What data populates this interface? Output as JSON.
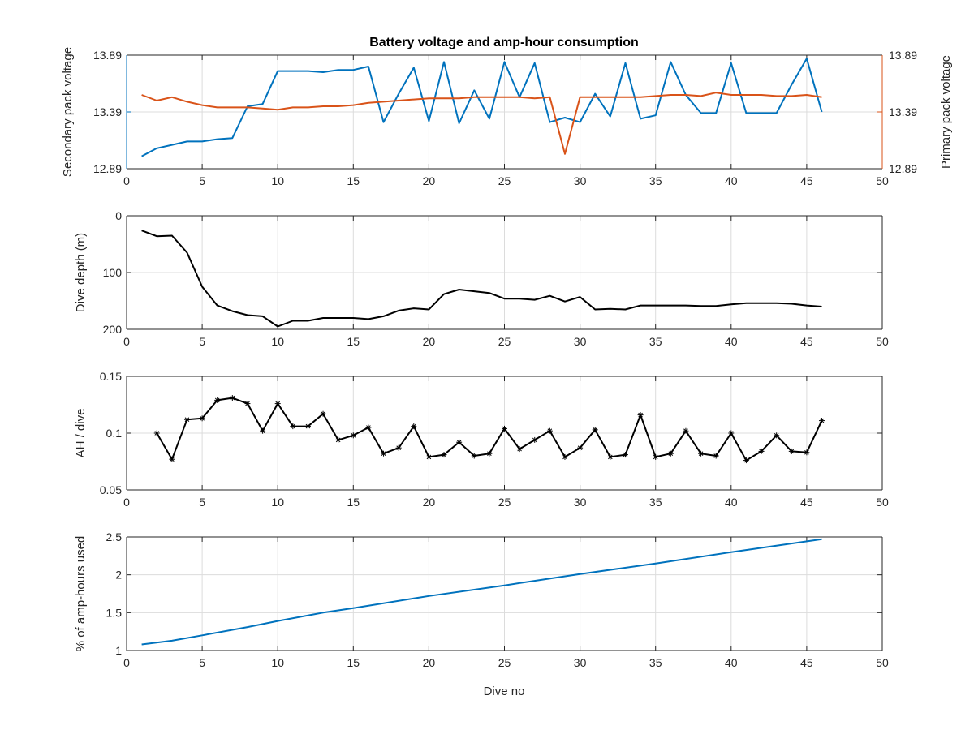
{
  "figure": {
    "title": "Battery voltage and amp-hour consumption",
    "xlabel": "Dive no"
  },
  "chart_data": [
    {
      "type": "line",
      "title": "Battery voltage and amp-hour consumption",
      "xlabel": "",
      "ylabel": "Secondary pack voltage",
      "ylabel_right": "Primary pack voltage",
      "xlim": [
        0,
        50
      ],
      "ylim": [
        12.89,
        13.89
      ],
      "ylim_right": [
        12.89,
        13.89
      ],
      "xticks": [
        0,
        5,
        10,
        15,
        20,
        25,
        30,
        35,
        40,
        45,
        50
      ],
      "yticks": [
        12.89,
        13.39,
        13.89
      ],
      "yticks_right": [
        12.89,
        13.39,
        13.89
      ],
      "grid": true,
      "x": [
        1,
        2,
        3,
        4,
        5,
        6,
        7,
        8,
        9,
        10,
        11,
        12,
        13,
        14,
        15,
        16,
        17,
        18,
        19,
        20,
        21,
        22,
        23,
        24,
        25,
        26,
        27,
        28,
        29,
        30,
        31,
        32,
        33,
        34,
        35,
        36,
        37,
        38,
        39,
        40,
        41,
        42,
        43,
        44,
        45,
        46
      ],
      "series": [
        {
          "axis": "left",
          "color": "#0072BD",
          "values": [
            13.0,
            13.07,
            13.1,
            13.13,
            13.13,
            13.15,
            13.16,
            13.44,
            13.46,
            13.75,
            13.75,
            13.75,
            13.74,
            13.76,
            13.76,
            13.79,
            13.3,
            13.55,
            13.78,
            13.31,
            13.83,
            13.29,
            13.58,
            13.33,
            13.83,
            13.52,
            13.82,
            13.3,
            13.34,
            13.3,
            13.55,
            13.35,
            13.82,
            13.33,
            13.36,
            13.83,
            13.54,
            13.38,
            13.38,
            13.82,
            13.38,
            13.38,
            13.38,
            13.63,
            13.86,
            13.39
          ]
        },
        {
          "axis": "right",
          "color": "#D95319",
          "values": [
            13.54,
            13.49,
            13.52,
            13.48,
            13.45,
            13.43,
            13.43,
            13.43,
            13.42,
            13.41,
            13.43,
            13.43,
            13.44,
            13.44,
            13.45,
            13.47,
            13.48,
            13.49,
            13.5,
            13.51,
            13.51,
            13.51,
            13.52,
            13.52,
            13.52,
            13.52,
            13.51,
            13.52,
            13.02,
            13.52,
            13.52,
            13.52,
            13.52,
            13.52,
            13.53,
            13.54,
            13.54,
            13.53,
            13.56,
            13.54,
            13.54,
            13.54,
            13.53,
            13.53,
            13.54,
            13.52
          ]
        }
      ]
    },
    {
      "type": "line",
      "xlabel": "",
      "ylabel": "Dive depth (m)",
      "xlim": [
        0,
        50
      ],
      "ylim": [
        0,
        200
      ],
      "y_reversed": true,
      "xticks": [
        0,
        5,
        10,
        15,
        20,
        25,
        30,
        35,
        40,
        45,
        50
      ],
      "yticks": [
        0,
        100,
        200
      ],
      "grid": true,
      "series": [
        {
          "color": "#000000",
          "x": [
            1,
            2,
            3,
            4,
            5,
            6,
            7,
            8,
            9,
            10,
            11,
            12,
            13,
            14,
            15,
            16,
            17,
            18,
            19,
            20,
            21,
            22,
            23,
            24,
            25,
            26,
            27,
            28,
            29,
            30,
            31,
            32,
            33,
            34,
            35,
            36,
            37,
            38,
            39,
            40,
            41,
            42,
            43,
            44,
            45,
            46
          ],
          "values": [
            26,
            36,
            35,
            65,
            125,
            158,
            168,
            175,
            177,
            195,
            185,
            185,
            180,
            180,
            180,
            182,
            177,
            167,
            163,
            165,
            138,
            130,
            133,
            136,
            146,
            146,
            148,
            141,
            151,
            143,
            165,
            164,
            165,
            158,
            158,
            158,
            158,
            159,
            159,
            156,
            154,
            154,
            154,
            155,
            158,
            160
          ]
        }
      ]
    },
    {
      "type": "line",
      "xlabel": "",
      "ylabel": "AH / dive",
      "xlim": [
        0,
        50
      ],
      "ylim": [
        0.05,
        0.15
      ],
      "xticks": [
        0,
        5,
        10,
        15,
        20,
        25,
        30,
        35,
        40,
        45,
        50
      ],
      "yticks": [
        0.05,
        0.1,
        0.15
      ],
      "grid": true,
      "markers": "star",
      "series": [
        {
          "color": "#000000",
          "x": [
            2,
            3,
            4,
            5,
            6,
            7,
            8,
            9,
            10,
            11,
            12,
            13,
            14,
            15,
            16,
            17,
            18,
            19,
            20,
            21,
            22,
            23,
            24,
            25,
            26,
            27,
            28,
            29,
            30,
            31,
            32,
            33,
            34,
            35,
            36,
            37,
            38,
            39,
            40,
            41,
            42,
            43,
            44,
            45,
            46
          ],
          "values": [
            0.1,
            0.077,
            0.112,
            0.113,
            0.129,
            0.131,
            0.126,
            0.102,
            0.126,
            0.106,
            0.106,
            0.117,
            0.094,
            0.098,
            0.105,
            0.082,
            0.087,
            0.106,
            0.079,
            0.081,
            0.092,
            0.08,
            0.082,
            0.104,
            0.086,
            0.094,
            0.102,
            0.079,
            0.087,
            0.103,
            0.079,
            0.081,
            0.116,
            0.079,
            0.082,
            0.102,
            0.082,
            0.08,
            0.1,
            0.076,
            0.084,
            0.098,
            0.084,
            0.083,
            0.111
          ]
        }
      ]
    },
    {
      "type": "line",
      "xlabel": "Dive no",
      "ylabel": "% of amp-hours used",
      "xlim": [
        0,
        50
      ],
      "ylim": [
        1,
        2.5
      ],
      "xticks": [
        0,
        5,
        10,
        15,
        20,
        25,
        30,
        35,
        40,
        45,
        50
      ],
      "yticks": [
        1,
        1.5,
        2,
        2.5
      ],
      "grid": true,
      "series": [
        {
          "color": "#0072BD",
          "x": [
            1,
            3,
            5,
            8,
            10,
            13,
            15,
            20,
            25,
            30,
            35,
            40,
            46
          ],
          "values": [
            1.08,
            1.13,
            1.2,
            1.31,
            1.39,
            1.5,
            1.56,
            1.72,
            1.86,
            2.01,
            2.15,
            2.3,
            2.47
          ]
        }
      ]
    }
  ]
}
